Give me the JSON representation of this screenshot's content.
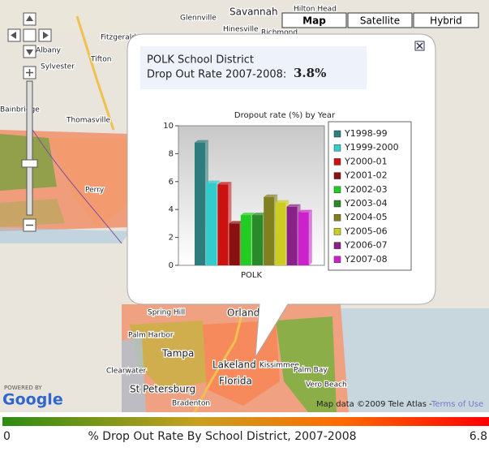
{
  "map": {
    "buttons": [
      "Map",
      "Satellite",
      "Hybrid"
    ],
    "places": [
      "Savannah",
      "Hilton Head",
      "Glennville",
      "Hinesville",
      "Richmond",
      "Albany",
      "Fitzgerald",
      "Sylvester",
      "Tifton",
      "Thomasville",
      "Bainbridge",
      "Perry",
      "Spring Hill",
      "Orlando",
      "Palm Harbor",
      "Tampa",
      "Kissimmee",
      "Clearwater",
      "Lakeland",
      "Florida",
      "Palm Bay",
      "St Petersburg",
      "Vero Beach",
      "Bradenton"
    ],
    "powered_by": "POWERED BY",
    "google": "Google",
    "attribution": "Map data ©2009 Tele Atlas -",
    "terms": "Terms of Use"
  },
  "popup": {
    "district": "POLK School District",
    "rate_label": "Drop Out Rate 2007-2008:",
    "rate": "3.8%"
  },
  "chart_data": {
    "type": "bar",
    "title": "Dropout rate (%) by Year",
    "categories": [
      "POLK"
    ],
    "series": [
      {
        "name": "Y1998-99",
        "color": "#2e7d7d",
        "values": [
          8.8
        ]
      },
      {
        "name": "Y1999-2000",
        "color": "#33cccc",
        "values": [
          5.9
        ]
      },
      {
        "name": "Y2000-01",
        "color": "#cc1111",
        "values": [
          5.8
        ]
      },
      {
        "name": "Y2001-02",
        "color": "#8b1010",
        "values": [
          3.0
        ]
      },
      {
        "name": "Y2002-03",
        "color": "#22cc22",
        "values": [
          3.6
        ]
      },
      {
        "name": "Y2003-04",
        "color": "#2a8a2a",
        "values": [
          3.6
        ]
      },
      {
        "name": "Y2004-05",
        "color": "#808020",
        "values": [
          4.9
        ]
      },
      {
        "name": "Y2005-06",
        "color": "#cccc22",
        "values": [
          4.5
        ]
      },
      {
        "name": "Y2006-07",
        "color": "#882288",
        "values": [
          4.2
        ]
      },
      {
        "name": "Y2007-08",
        "color": "#cc22cc",
        "values": [
          3.8
        ]
      }
    ],
    "ylim": [
      0,
      10
    ],
    "yticks": [
      0,
      2,
      4,
      6,
      8,
      10
    ]
  },
  "color_scale": {
    "min": 0,
    "max": 6.8,
    "label": "% Drop Out Rate By School District, 2007-2008"
  }
}
